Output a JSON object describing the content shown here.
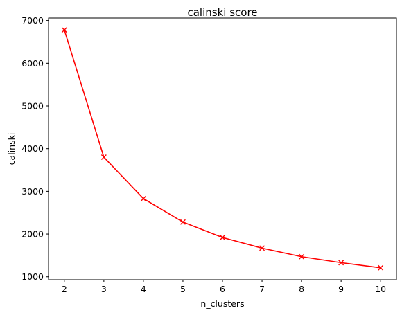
{
  "chart_data": {
    "type": "line",
    "title": "calinski score",
    "xlabel": "n_clusters",
    "ylabel": "calinski",
    "x": [
      2,
      3,
      4,
      5,
      6,
      7,
      8,
      9,
      10
    ],
    "series": [
      {
        "values": [
          6780,
          3800,
          2830,
          2280,
          1920,
          1670,
          1470,
          1330,
          1210
        ],
        "color": "#ff0000",
        "marker": "x"
      }
    ],
    "xticks": [
      "2",
      "3",
      "4",
      "5",
      "6",
      "7",
      "8",
      "9",
      "10"
    ],
    "yticks": [
      "1000",
      "2000",
      "3000",
      "4000",
      "5000",
      "6000",
      "7000"
    ],
    "xlim": [
      1.6,
      10.4
    ],
    "ylim": [
      931,
      7059
    ],
    "grid": false,
    "legend": "none"
  }
}
